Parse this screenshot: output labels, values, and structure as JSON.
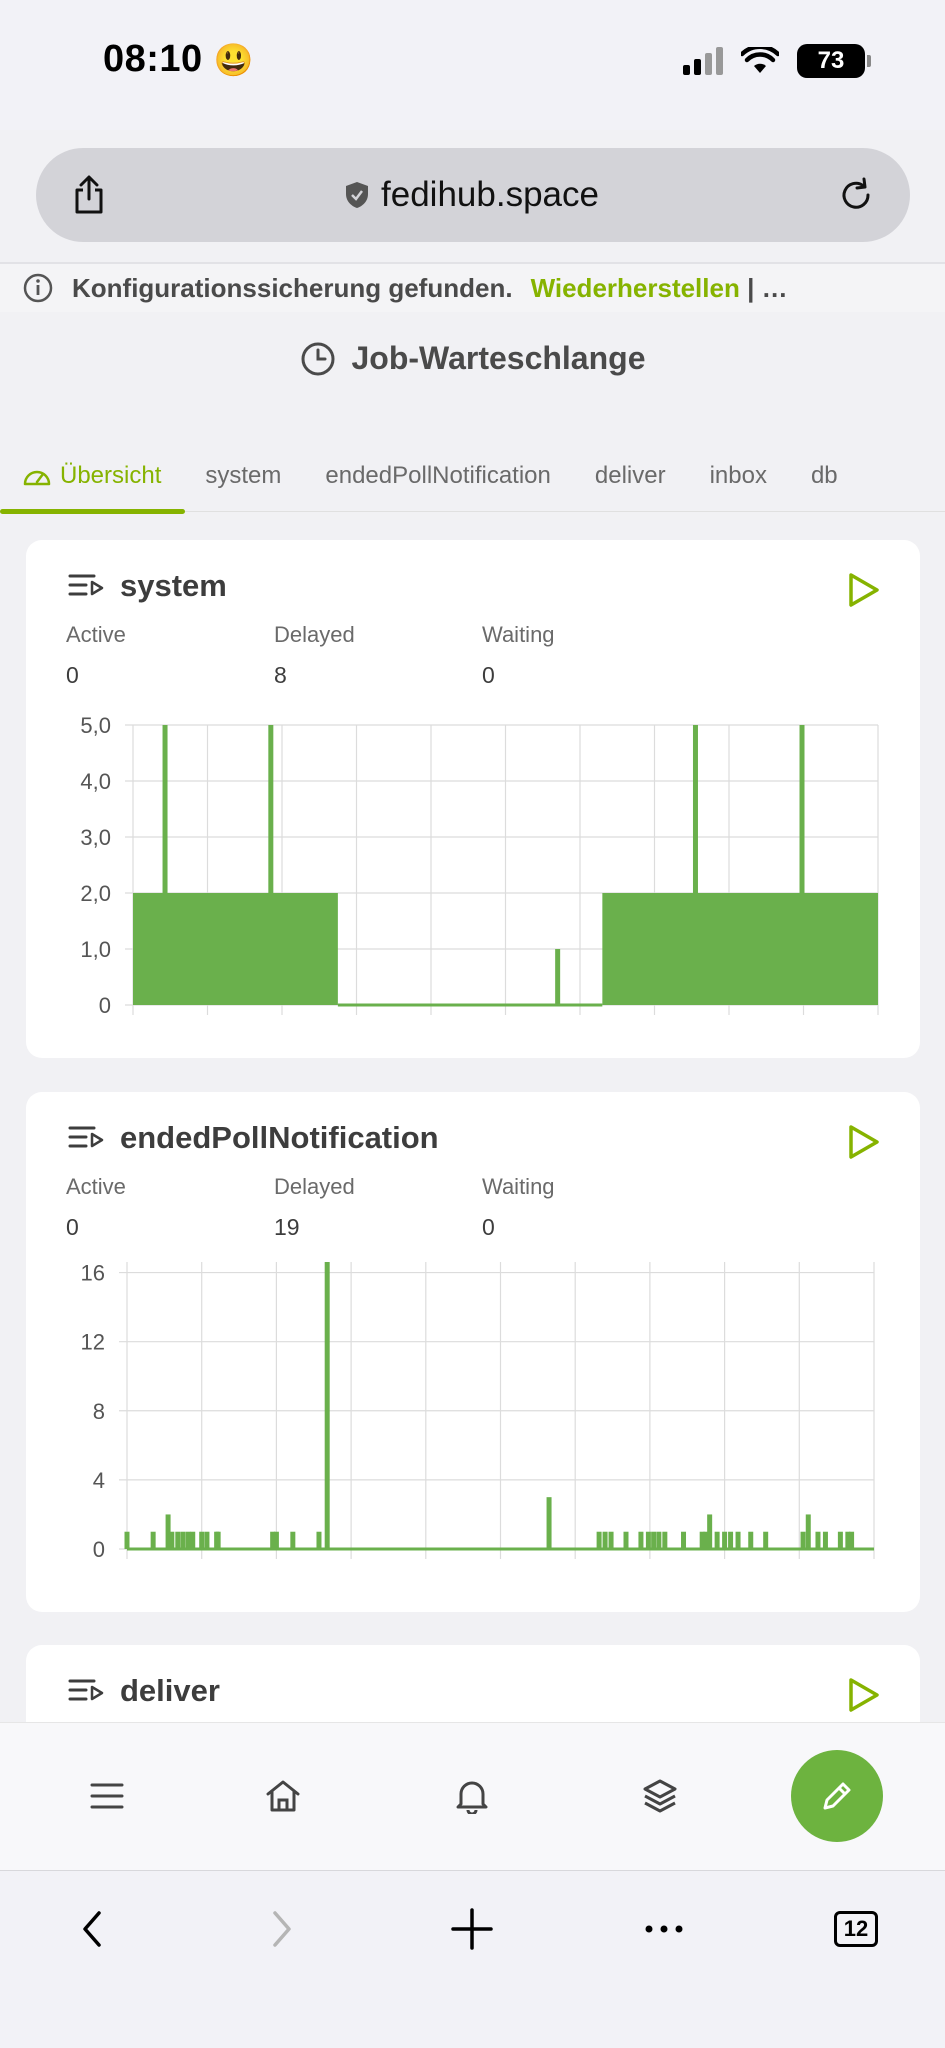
{
  "status": {
    "time": "08:10",
    "emoji": "😃",
    "battery": "73"
  },
  "browser": {
    "url": "fedihub.space",
    "tab_count": "12"
  },
  "banner": {
    "message": "Konfigurationssicherung gefunden.",
    "action": "Wiederherstellen",
    "separator": "| …"
  },
  "page": {
    "title": "Job-Warteschlange"
  },
  "tabs": [
    "Übersicht",
    "system",
    "endedPollNotification",
    "deliver",
    "inbox",
    "db"
  ],
  "queues": [
    {
      "name": "system",
      "stats": [
        {
          "label": "Active",
          "value": "0"
        },
        {
          "label": "Delayed",
          "value": "8"
        },
        {
          "label": "Waiting",
          "value": "0"
        }
      ]
    },
    {
      "name": "endedPollNotification",
      "stats": [
        {
          "label": "Active",
          "value": "0"
        },
        {
          "label": "Delayed",
          "value": "19"
        },
        {
          "label": "Waiting",
          "value": "0"
        }
      ]
    },
    {
      "name": "deliver"
    }
  ],
  "colors": {
    "accent": "#86b300",
    "chart": "#6ab04c",
    "fab": "#6db33f"
  },
  "chart_data": [
    {
      "type": "bar",
      "title": "",
      "ylim": [
        0,
        5
      ],
      "yticks": [
        "0",
        "1,0",
        "2,0",
        "3,0",
        "4,0",
        "5,0"
      ],
      "series": [
        {
          "segments": [
            {
              "from": 0,
              "to": 0.275,
              "value": 2
            },
            {
              "from": 0.275,
              "to": 0.63,
              "value": 0
            },
            {
              "from": 0.63,
              "to": 1.0,
              "value": 2
            }
          ],
          "spikes": [
            {
              "x": 0.043,
              "value": 5
            },
            {
              "x": 0.185,
              "value": 5
            },
            {
              "x": 0.57,
              "value": 1
            },
            {
              "x": 0.755,
              "value": 5
            },
            {
              "x": 0.898,
              "value": 5
            }
          ]
        }
      ],
      "grid": true
    },
    {
      "type": "bar",
      "title": "",
      "ylim": [
        0,
        18
      ],
      "yticks": [
        "0",
        "4",
        "8",
        "12",
        "16"
      ],
      "series": [
        {
          "spikes": [
            {
              "x": 0.0,
              "value": 1
            },
            {
              "x": 0.035,
              "value": 1
            },
            {
              "x": 0.055,
              "value": 2
            },
            {
              "x": 0.06,
              "value": 1
            },
            {
              "x": 0.068,
              "value": 1
            },
            {
              "x": 0.075,
              "value": 1
            },
            {
              "x": 0.082,
              "value": 1
            },
            {
              "x": 0.088,
              "value": 1
            },
            {
              "x": 0.1,
              "value": 1
            },
            {
              "x": 0.107,
              "value": 1
            },
            {
              "x": 0.12,
              "value": 1
            },
            {
              "x": 0.122,
              "value": 1
            },
            {
              "x": 0.195,
              "value": 1
            },
            {
              "x": 0.2,
              "value": 1
            },
            {
              "x": 0.222,
              "value": 1
            },
            {
              "x": 0.257,
              "value": 1
            },
            {
              "x": 0.268,
              "value": 17
            },
            {
              "x": 0.565,
              "value": 3
            },
            {
              "x": 0.632,
              "value": 1
            },
            {
              "x": 0.64,
              "value": 1
            },
            {
              "x": 0.648,
              "value": 1
            },
            {
              "x": 0.668,
              "value": 1
            },
            {
              "x": 0.688,
              "value": 1
            },
            {
              "x": 0.698,
              "value": 1
            },
            {
              "x": 0.705,
              "value": 1
            },
            {
              "x": 0.712,
              "value": 1
            },
            {
              "x": 0.72,
              "value": 1
            },
            {
              "x": 0.745,
              "value": 1
            },
            {
              "x": 0.77,
              "value": 1
            },
            {
              "x": 0.775,
              "value": 1
            },
            {
              "x": 0.78,
              "value": 2
            },
            {
              "x": 0.79,
              "value": 1
            },
            {
              "x": 0.8,
              "value": 1
            },
            {
              "x": 0.808,
              "value": 1
            },
            {
              "x": 0.818,
              "value": 1
            },
            {
              "x": 0.835,
              "value": 1
            },
            {
              "x": 0.855,
              "value": 1
            },
            {
              "x": 0.905,
              "value": 1
            },
            {
              "x": 0.912,
              "value": 2
            },
            {
              "x": 0.925,
              "value": 1
            },
            {
              "x": 0.935,
              "value": 1
            },
            {
              "x": 0.955,
              "value": 1
            },
            {
              "x": 0.965,
              "value": 1
            },
            {
              "x": 0.97,
              "value": 1
            }
          ]
        }
      ],
      "grid": true
    }
  ]
}
